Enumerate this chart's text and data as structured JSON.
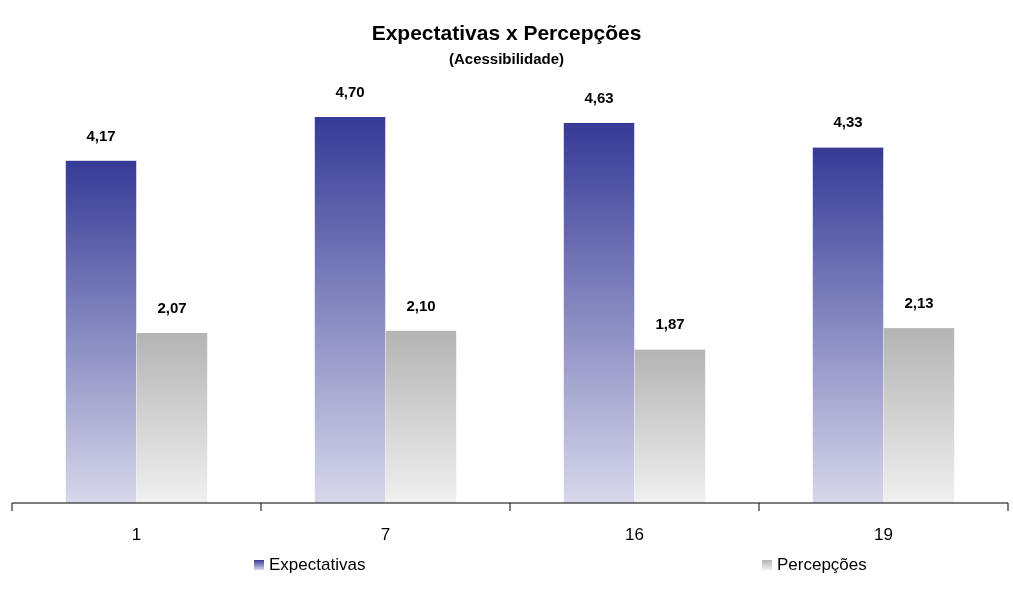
{
  "chart_data": {
    "type": "bar",
    "title": "Expectativas x Percepções",
    "subtitle": "(Acessibilidade)",
    "categories": [
      "1",
      "7",
      "16",
      "19"
    ],
    "series": [
      {
        "name": "Expectativas",
        "color": "#363a96",
        "values": [
          4.17,
          4.7,
          4.63,
          4.33
        ],
        "value_labels": [
          "4,17",
          "4,70",
          "4,63",
          "4,33"
        ]
      },
      {
        "name": "Percepções",
        "color": "#b4b4b4",
        "values": [
          2.07,
          2.1,
          1.87,
          2.13
        ],
        "value_labels": [
          "2,07",
          "2,10",
          "1,87",
          "2,13"
        ]
      }
    ],
    "legend": "bottom"
  }
}
